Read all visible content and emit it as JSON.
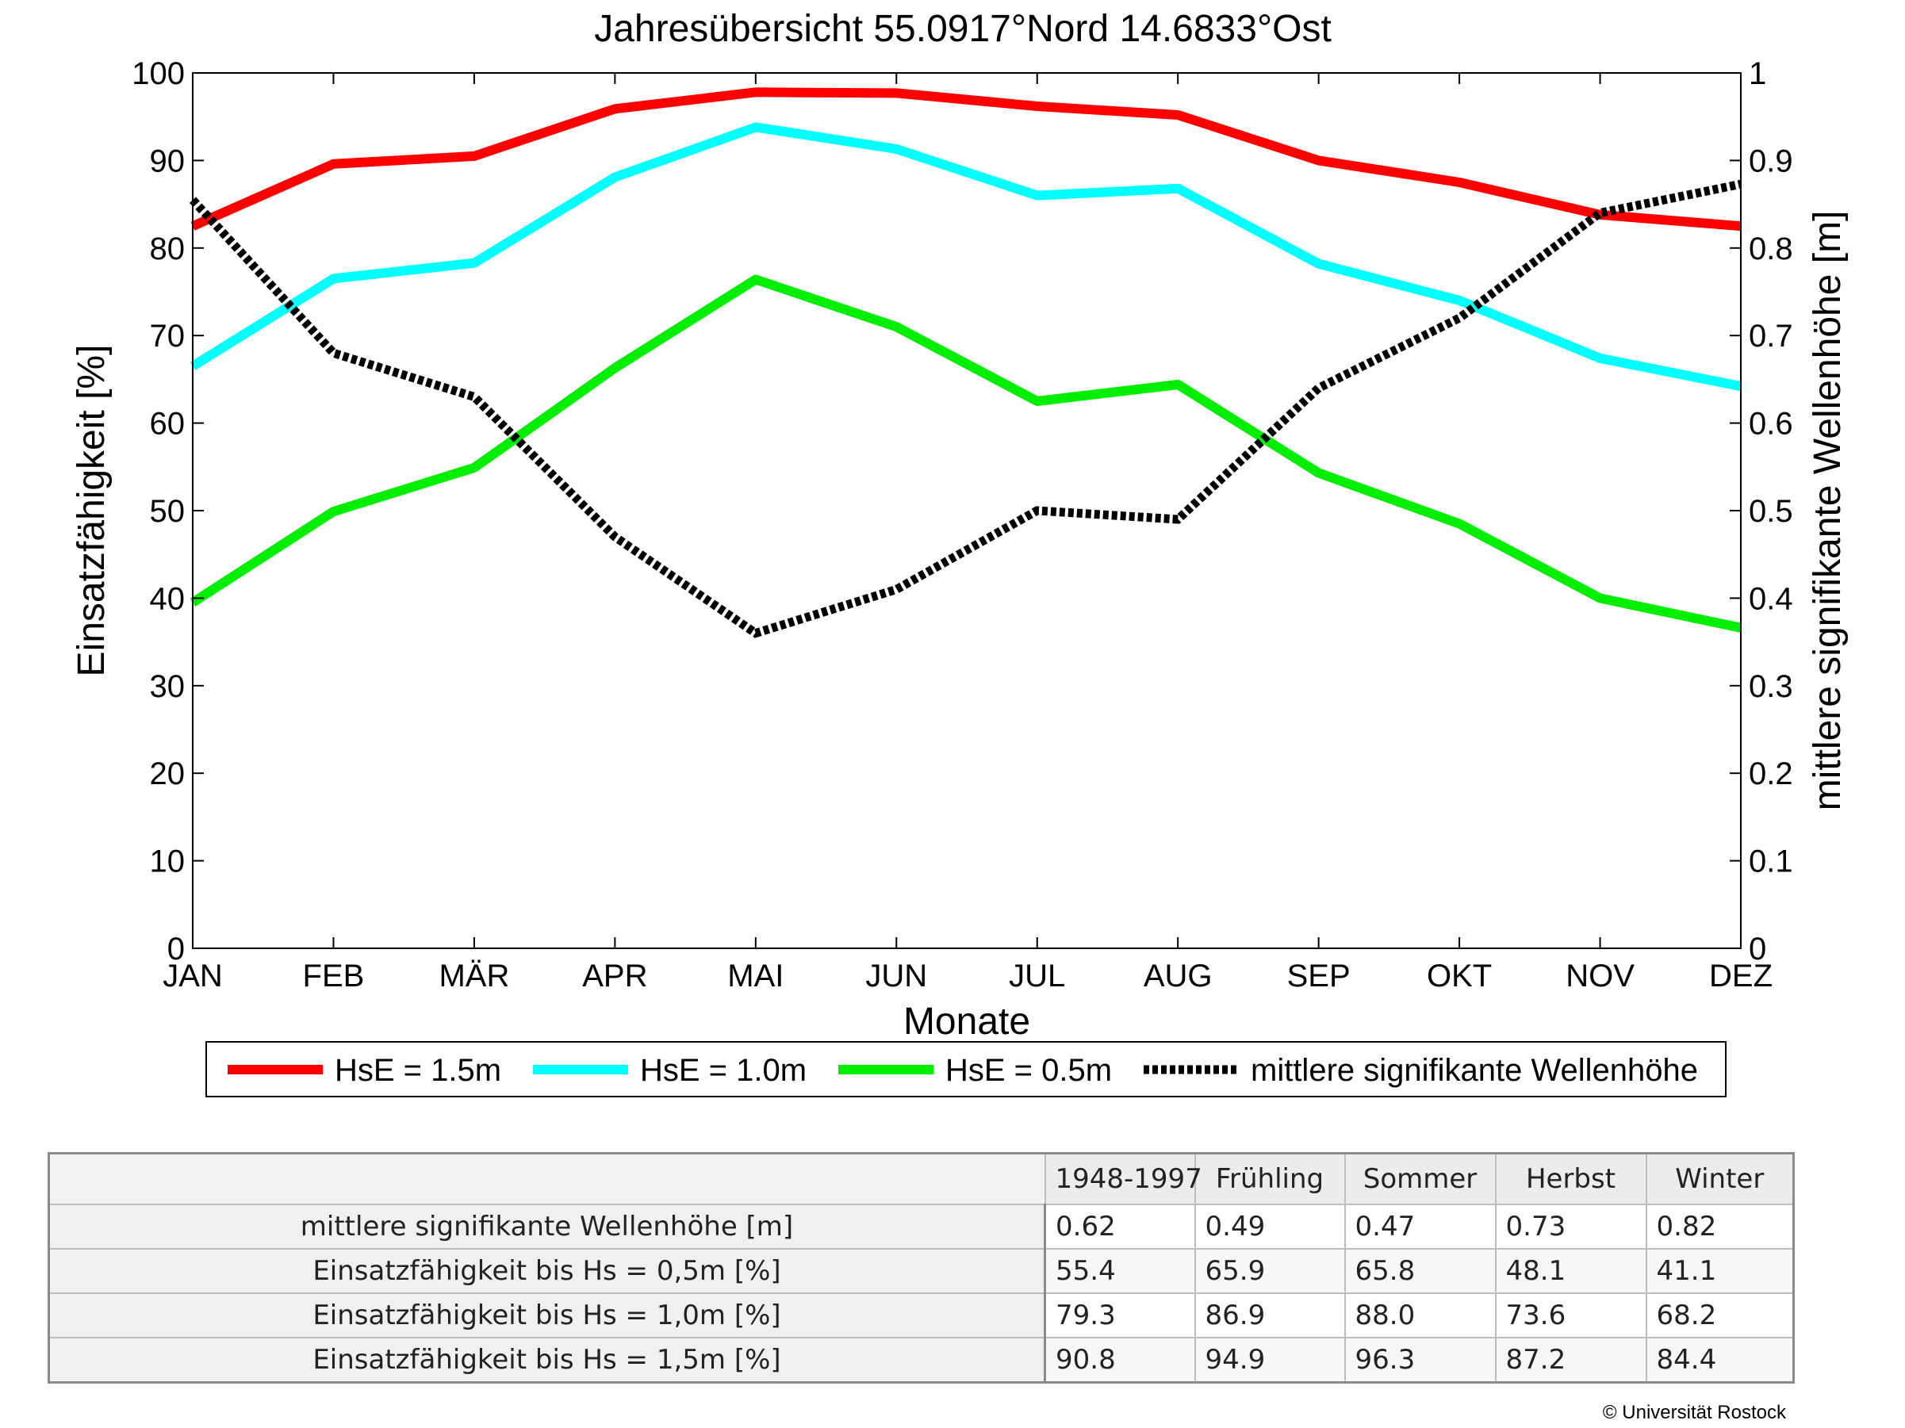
{
  "chart_data": {
    "type": "line",
    "title": "Jahresübersicht  55.0917°Nord  14.6833°Ost",
    "xlabel": "Monate",
    "ylabel": "Einsatzfähigkeit [%]",
    "y2label": "mittlere signifikante Wellenhöhe [m]",
    "categories": [
      "JAN",
      "FEB",
      "MÄR",
      "APR",
      "MAI",
      "JUN",
      "JUL",
      "AUG",
      "SEP",
      "OKT",
      "NOV",
      "DEZ"
    ],
    "ylim": [
      0,
      100
    ],
    "y2lim": [
      0,
      1
    ],
    "yticks": [
      "0",
      "10",
      "20",
      "30",
      "40",
      "50",
      "60",
      "70",
      "80",
      "90",
      "100"
    ],
    "y2ticks": [
      "0",
      "0.1",
      "0.2",
      "0.3",
      "0.4",
      "0.5",
      "0.6",
      "0.7",
      "0.8",
      "0.9",
      "1"
    ],
    "legend_position": "bottom",
    "series": [
      {
        "name": "HsE = 1.5m",
        "axis": "left",
        "color": "#ff0000",
        "dash": false,
        "values": [
          82.5,
          89.6,
          90.5,
          95.9,
          97.8,
          97.7,
          96.2,
          95.2,
          90.0,
          87.5,
          83.8,
          82.5
        ]
      },
      {
        "name": "HsE = 1.0m",
        "axis": "left",
        "color": "#00ffff",
        "dash": false,
        "values": [
          66.5,
          76.5,
          78.3,
          88.1,
          93.8,
          91.3,
          86.0,
          86.8,
          78.2,
          74.0,
          67.4,
          64.2
        ]
      },
      {
        "name": "HsE = 0.5m",
        "axis": "left",
        "color": "#00ee00",
        "dash": false,
        "values": [
          39.5,
          49.9,
          54.9,
          66.3,
          76.4,
          71.0,
          62.5,
          64.4,
          54.3,
          48.5,
          40.0,
          36.6
        ]
      },
      {
        "name": "mittlere signifikante Wellenhöhe",
        "axis": "right",
        "color": "#000000",
        "dash": true,
        "values": [
          0.855,
          0.68,
          0.63,
          0.47,
          0.36,
          0.41,
          0.5,
          0.49,
          0.64,
          0.72,
          0.84,
          0.873
        ]
      }
    ]
  },
  "table": {
    "corner": "",
    "headers": [
      "1948-1997",
      "Frühling",
      "Sommer",
      "Herbst",
      "Winter"
    ],
    "rows": [
      {
        "label": "mittlere signifikante Wellenhöhe [m]",
        "values": [
          "0.62",
          "0.49",
          "0.47",
          "0.73",
          "0.82"
        ]
      },
      {
        "label": "Einsatzfähigkeit bis Hs = 0,5m [%]",
        "values": [
          "55.4",
          "65.9",
          "65.8",
          "48.1",
          "41.1"
        ]
      },
      {
        "label": "Einsatzfähigkeit bis Hs = 1,0m [%]",
        "values": [
          "79.3",
          "86.9",
          "88.0",
          "73.6",
          "68.2"
        ]
      },
      {
        "label": "Einsatzfähigkeit bis Hs = 1,5m [%]",
        "values": [
          "90.8",
          "94.9",
          "96.3",
          "87.2",
          "84.4"
        ]
      }
    ]
  },
  "copyright": "© Universität Rostock"
}
